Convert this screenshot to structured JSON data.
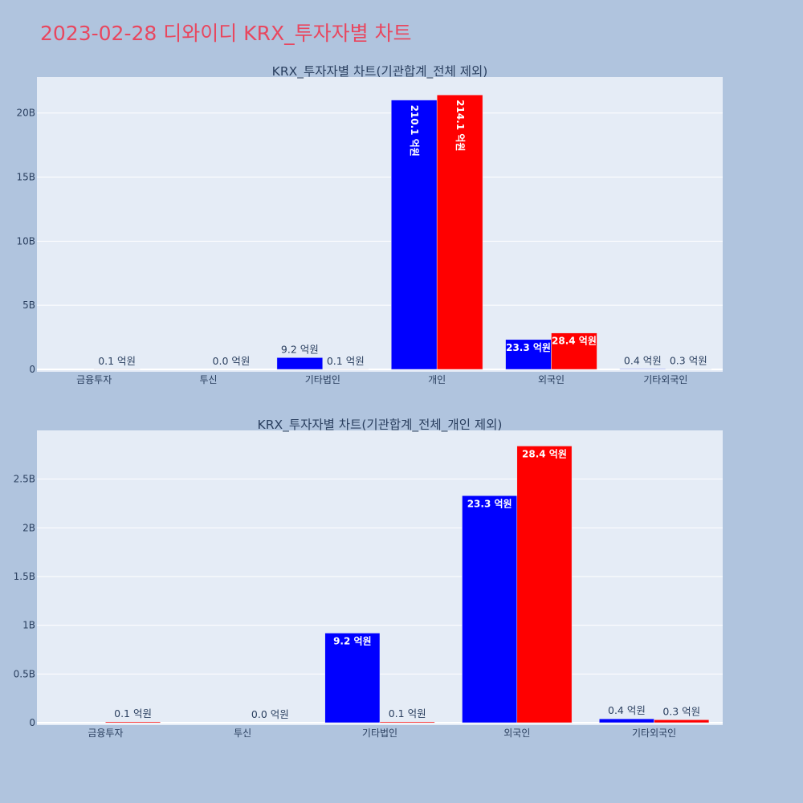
{
  "page": {
    "title": "2023-02-28 디와이디 KRX_투자자별 차트"
  },
  "colors": {
    "background": "#b0c4de",
    "plot_background": "#e5ecf6",
    "title": "#e8475f",
    "series_a": "#0000ff",
    "series_b": "#ff0000"
  },
  "chart_data": [
    {
      "type": "bar",
      "title": "KRX_투자자별 차트(기관합계_전체 제외)",
      "categories": [
        "금융투자",
        "투신",
        "기타법인",
        "개인",
        "외국인",
        "기타외국인"
      ],
      "series": [
        {
          "color": "#0000ff",
          "values": [
            0,
            0,
            920000000,
            21010000000,
            2330000000,
            40000000
          ],
          "labels": [
            "",
            "",
            "9.2 억원",
            "210.1 억원",
            "23.3 억원",
            "0.4 억원"
          ]
        },
        {
          "color": "#ff0000",
          "values": [
            10000000,
            0,
            10000000,
            21410000000,
            2840000000,
            30000000
          ],
          "labels": [
            "0.1 억원",
            "0.0 억원",
            "0.1 억원",
            "214.1 억원",
            "28.4 억원",
            "0.3 억원"
          ]
        }
      ],
      "yticks": [
        0,
        5000000000,
        10000000000,
        15000000000,
        20000000000
      ],
      "ytick_labels": [
        "0",
        "5B",
        "10B",
        "15B",
        "20B"
      ],
      "ylim": [
        0,
        22800000000
      ],
      "grid": true
    },
    {
      "type": "bar",
      "title": "KRX_투자자별 차트(기관합계_전체_개인 제외)",
      "categories": [
        "금융투자",
        "투신",
        "기타법인",
        "외국인",
        "기타외국인"
      ],
      "series": [
        {
          "color": "#0000ff",
          "values": [
            0,
            0,
            920000000,
            2330000000,
            40000000
          ],
          "labels": [
            "",
            "",
            "9.2 억원",
            "23.3 억원",
            "0.4 억원"
          ]
        },
        {
          "color": "#ff0000",
          "values": [
            10000000,
            0,
            10000000,
            2840000000,
            30000000
          ],
          "labels": [
            "0.1 억원",
            "0.0 억원",
            "0.1 억원",
            "28.4 억원",
            "0.3 억원"
          ]
        }
      ],
      "yticks": [
        0,
        500000000,
        1000000000,
        1500000000,
        2000000000,
        2500000000
      ],
      "ytick_labels": [
        "0",
        "0.5B",
        "1B",
        "1.5B",
        "2B",
        "2.5B"
      ],
      "ylim": [
        0,
        3000000000
      ],
      "grid": true
    }
  ]
}
